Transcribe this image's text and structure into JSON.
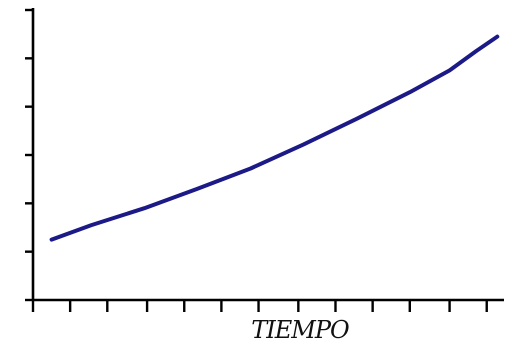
{
  "chart_data": {
    "type": "line",
    "title": "",
    "xlabel": "TIEMPO",
    "ylabel": "",
    "x": [
      0.5,
      2,
      4,
      6,
      8,
      10,
      12,
      14,
      15.5,
      16.5,
      17.3
    ],
    "series": [
      {
        "values": [
          1.25,
          1.55,
          1.9,
          2.3,
          2.72,
          3.22,
          3.75,
          4.3,
          4.75,
          5.15,
          5.45
        ],
        "color": "#1c1a86"
      }
    ],
    "xlim": [
      -0.2,
      17.4
    ],
    "ylim": [
      0,
      6
    ],
    "x_ticks": [
      -0.2,
      1.2,
      2.6,
      4.1,
      5.5,
      6.9,
      8.3,
      9.8,
      11.2,
      12.6,
      14.0,
      15.5,
      16.9
    ],
    "y_ticks": [
      0,
      1,
      2,
      3,
      4,
      5,
      6
    ],
    "grid": false,
    "legend": "none"
  }
}
